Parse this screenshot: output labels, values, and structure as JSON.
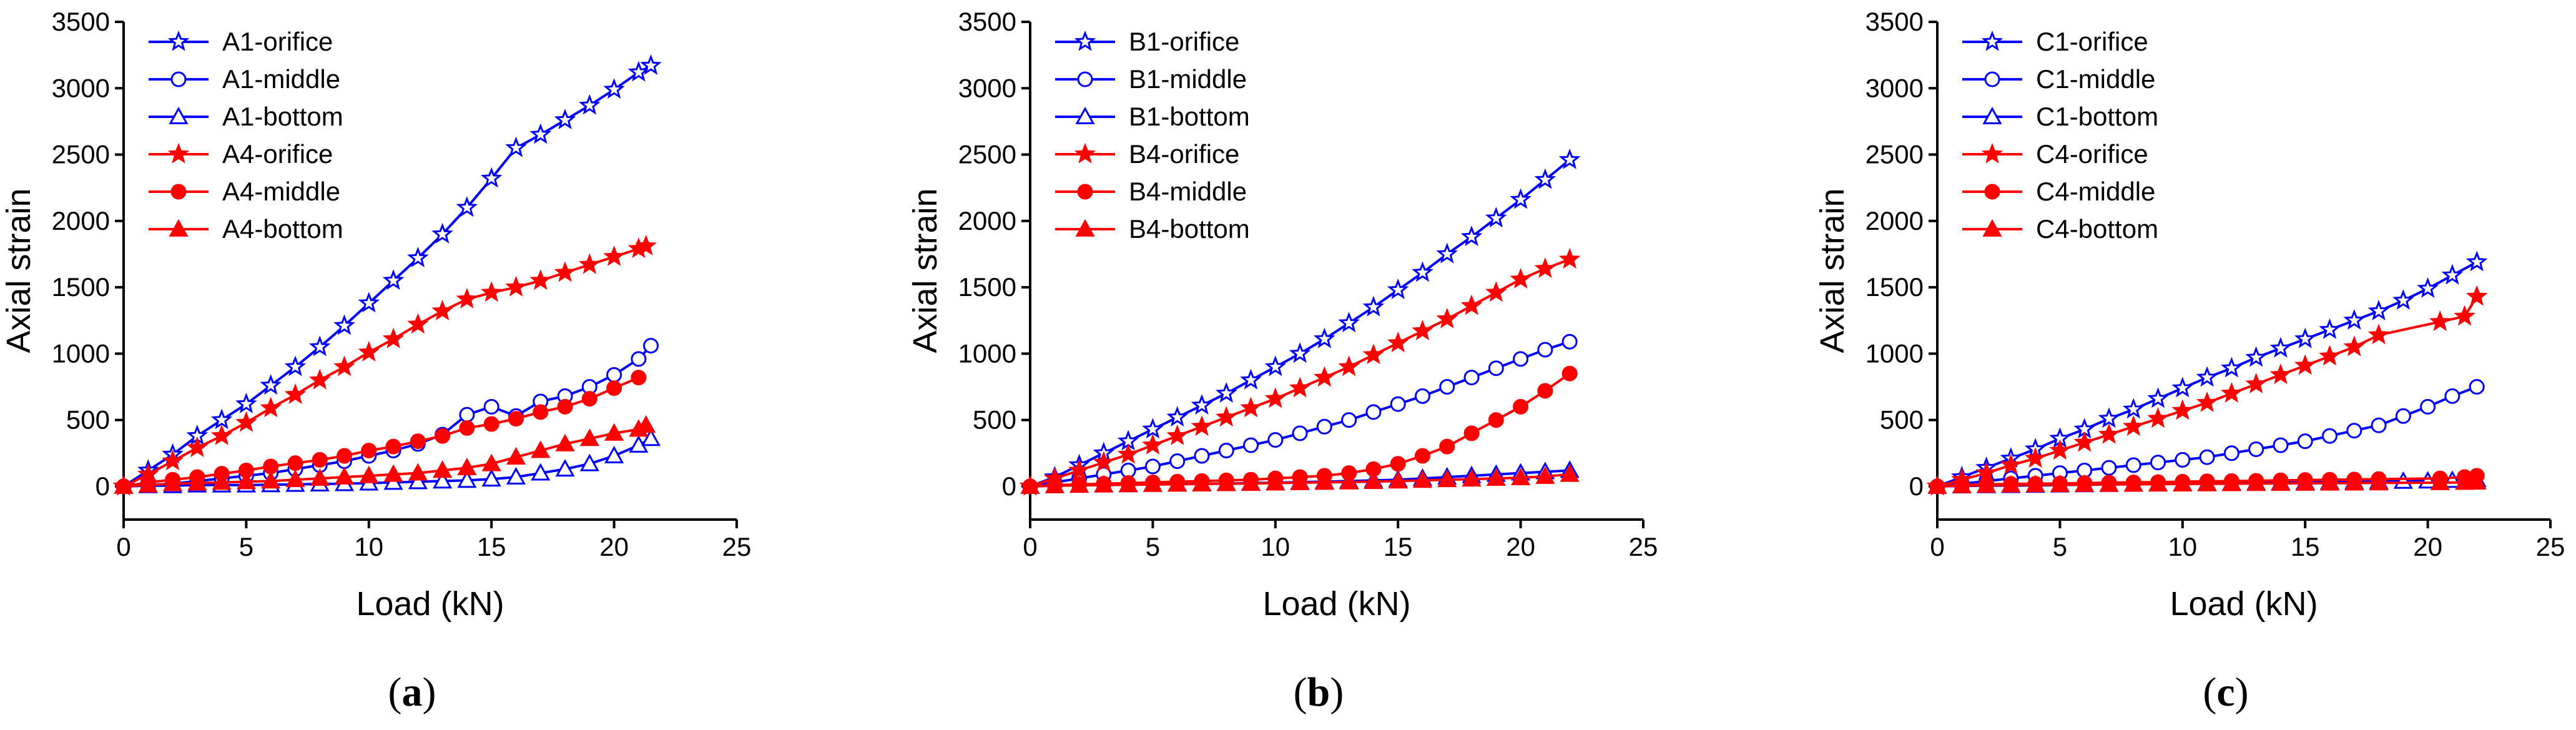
{
  "chart_data": [
    {
      "type": "line",
      "panel_label": "a",
      "xlabel": "Load (kN)",
      "ylabel": "Axial strain",
      "xlim": [
        0,
        25
      ],
      "ylim": [
        -250,
        3500
      ],
      "xticks": [
        0,
        5,
        10,
        15,
        20,
        25
      ],
      "yticks": [
        0,
        500,
        1000,
        1500,
        2000,
        2500,
        3000,
        3500
      ],
      "legend_position": "top-left",
      "series": [
        {
          "name": "A1-orifice",
          "color": "#0000ff",
          "marker": "star-open",
          "x": [
            0,
            1,
            2,
            3,
            4,
            5,
            6,
            7,
            8,
            9,
            10,
            11,
            12,
            13,
            14,
            15,
            16,
            17,
            18,
            19,
            20,
            21,
            21.5
          ],
          "y": [
            0,
            120,
            240,
            380,
            500,
            620,
            760,
            900,
            1050,
            1210,
            1380,
            1550,
            1720,
            1900,
            2100,
            2320,
            2550,
            2650,
            2760,
            2870,
            2990,
            3120,
            3170
          ]
        },
        {
          "name": "A1-middle",
          "color": "#0000ff",
          "marker": "circle-open",
          "x": [
            0,
            1,
            2,
            3,
            4,
            5,
            6,
            7,
            8,
            9,
            10,
            11,
            12,
            13,
            14,
            15,
            16,
            17,
            18,
            19,
            20,
            21,
            21.5
          ],
          "y": [
            0,
            10,
            20,
            40,
            60,
            80,
            100,
            130,
            160,
            190,
            230,
            270,
            320,
            390,
            540,
            600,
            530,
            640,
            680,
            750,
            840,
            960,
            1060
          ]
        },
        {
          "name": "A1-bottom",
          "color": "#0000ff",
          "marker": "triangle-open",
          "x": [
            0,
            1,
            2,
            3,
            4,
            5,
            6,
            7,
            8,
            9,
            10,
            11,
            12,
            13,
            14,
            15,
            16,
            17,
            18,
            19,
            20,
            21,
            21.5
          ],
          "y": [
            0,
            5,
            5,
            10,
            10,
            10,
            12,
            15,
            18,
            20,
            25,
            30,
            35,
            40,
            45,
            55,
            70,
            100,
            130,
            170,
            230,
            310,
            360
          ]
        },
        {
          "name": "A4-orifice",
          "color": "#ff0000",
          "marker": "star-filled",
          "x": [
            0,
            1,
            2,
            3,
            4,
            5,
            6,
            7,
            8,
            9,
            10,
            11,
            12,
            13,
            14,
            15,
            16,
            17,
            18,
            19,
            20,
            21,
            21.3
          ],
          "y": [
            0,
            90,
            190,
            290,
            380,
            480,
            590,
            690,
            800,
            900,
            1010,
            1110,
            1220,
            1320,
            1410,
            1460,
            1500,
            1550,
            1610,
            1670,
            1730,
            1790,
            1810
          ]
        },
        {
          "name": "A4-middle",
          "color": "#ff0000",
          "marker": "circle-filled",
          "x": [
            0,
            1,
            2,
            3,
            4,
            5,
            6,
            7,
            8,
            9,
            10,
            11,
            12,
            13,
            14,
            15,
            16,
            17,
            18,
            19,
            20,
            21
          ],
          "y": [
            0,
            30,
            50,
            70,
            95,
            120,
            150,
            175,
            200,
            230,
            270,
            300,
            340,
            380,
            440,
            470,
            510,
            560,
            600,
            660,
            740,
            820
          ]
        },
        {
          "name": "A4-bottom",
          "color": "#ff0000",
          "marker": "triangle-filled",
          "x": [
            0,
            1,
            2,
            3,
            4,
            5,
            6,
            7,
            8,
            9,
            10,
            11,
            12,
            13,
            14,
            15,
            16,
            17,
            18,
            19,
            20,
            21,
            21.3
          ],
          "y": [
            0,
            10,
            20,
            25,
            30,
            35,
            40,
            50,
            60,
            70,
            80,
            90,
            100,
            120,
            140,
            170,
            220,
            270,
            320,
            360,
            400,
            430,
            460
          ]
        }
      ]
    },
    {
      "type": "line",
      "panel_label": "b",
      "xlabel": "Load (kN)",
      "ylabel": "Axial strain",
      "xlim": [
        0,
        25
      ],
      "ylim": [
        -250,
        3500
      ],
      "xticks": [
        0,
        5,
        10,
        15,
        20,
        25
      ],
      "yticks": [
        0,
        500,
        1000,
        1500,
        2000,
        2500,
        3000,
        3500
      ],
      "legend_position": "top-left",
      "series": [
        {
          "name": "B1-orifice",
          "color": "#0000ff",
          "marker": "star-open",
          "x": [
            0,
            1,
            2,
            3,
            4,
            5,
            6,
            7,
            8,
            9,
            10,
            11,
            12,
            13,
            14,
            15,
            16,
            17,
            18,
            19,
            20,
            21,
            22
          ],
          "y": [
            0,
            70,
            160,
            250,
            340,
            430,
            520,
            610,
            700,
            800,
            900,
            1000,
            1110,
            1230,
            1350,
            1480,
            1610,
            1750,
            1880,
            2020,
            2160,
            2310,
            2460
          ]
        },
        {
          "name": "B1-middle",
          "color": "#0000ff",
          "marker": "circle-open",
          "x": [
            0,
            1,
            2,
            3,
            4,
            5,
            6,
            7,
            8,
            9,
            10,
            11,
            12,
            13,
            14,
            15,
            16,
            17,
            18,
            19,
            20,
            21,
            22
          ],
          "y": [
            0,
            30,
            60,
            90,
            120,
            150,
            190,
            230,
            270,
            310,
            350,
            400,
            450,
            500,
            560,
            620,
            680,
            750,
            820,
            890,
            960,
            1030,
            1090
          ]
        },
        {
          "name": "B1-bottom",
          "color": "#0000ff",
          "marker": "triangle-open",
          "x": [
            0,
            1,
            2,
            3,
            4,
            5,
            6,
            7,
            8,
            9,
            10,
            11,
            12,
            13,
            14,
            15,
            16,
            17,
            18,
            19,
            20,
            21,
            22
          ],
          "y": [
            0,
            5,
            8,
            10,
            12,
            15,
            18,
            20,
            22,
            25,
            28,
            32,
            36,
            40,
            45,
            50,
            60,
            70,
            80,
            90,
            100,
            110,
            120
          ]
        },
        {
          "name": "B4-orifice",
          "color": "#ff0000",
          "marker": "star-filled",
          "x": [
            0,
            1,
            2,
            3,
            4,
            5,
            6,
            7,
            8,
            9,
            10,
            11,
            12,
            13,
            14,
            15,
            16,
            17,
            18,
            19,
            20,
            21,
            22
          ],
          "y": [
            0,
            60,
            120,
            180,
            240,
            310,
            380,
            450,
            520,
            590,
            660,
            740,
            820,
            900,
            990,
            1080,
            1170,
            1260,
            1360,
            1460,
            1560,
            1640,
            1710
          ]
        },
        {
          "name": "B4-middle",
          "color": "#ff0000",
          "marker": "circle-filled",
          "x": [
            0,
            1,
            2,
            3,
            4,
            5,
            6,
            7,
            8,
            9,
            10,
            11,
            12,
            13,
            14,
            15,
            16,
            17,
            18,
            19,
            20,
            21,
            22
          ],
          "y": [
            0,
            10,
            15,
            20,
            25,
            30,
            35,
            40,
            45,
            50,
            60,
            70,
            80,
            100,
            130,
            170,
            230,
            300,
            400,
            500,
            600,
            720,
            850
          ]
        },
        {
          "name": "B4-bottom",
          "color": "#ff0000",
          "marker": "triangle-filled",
          "x": [
            0,
            1,
            2,
            3,
            4,
            5,
            6,
            7,
            8,
            9,
            10,
            11,
            12,
            13,
            14,
            15,
            16,
            17,
            18,
            19,
            20,
            21,
            22
          ],
          "y": [
            0,
            5,
            8,
            10,
            12,
            14,
            16,
            18,
            20,
            22,
            25,
            28,
            30,
            33,
            36,
            40,
            45,
            50,
            55,
            60,
            65,
            75,
            90
          ]
        }
      ]
    },
    {
      "type": "line",
      "panel_label": "c",
      "xlabel": "Load (kN)",
      "ylabel": "Axial strain",
      "xlim": [
        0,
        25
      ],
      "ylim": [
        -250,
        3500
      ],
      "xticks": [
        0,
        5,
        10,
        15,
        20,
        25
      ],
      "yticks": [
        0,
        500,
        1000,
        1500,
        2000,
        2500,
        3000,
        3500
      ],
      "legend_position": "top-left",
      "series": [
        {
          "name": "C1-orifice",
          "color": "#0000ff",
          "marker": "star-open",
          "x": [
            0,
            1,
            2,
            3,
            4,
            5,
            6,
            7,
            8,
            9,
            10,
            11,
            12,
            13,
            14,
            15,
            16,
            17,
            18,
            19,
            20,
            21,
            22
          ],
          "y": [
            0,
            70,
            140,
            210,
            280,
            360,
            430,
            510,
            580,
            660,
            740,
            820,
            890,
            970,
            1040,
            1110,
            1180,
            1250,
            1320,
            1400,
            1490,
            1590,
            1690
          ]
        },
        {
          "name": "C1-middle",
          "color": "#0000ff",
          "marker": "circle-open",
          "x": [
            0,
            1,
            2,
            3,
            4,
            5,
            6,
            7,
            8,
            9,
            10,
            11,
            12,
            13,
            14,
            15,
            16,
            17,
            18,
            19,
            20,
            21,
            22
          ],
          "y": [
            0,
            20,
            40,
            60,
            80,
            100,
            120,
            140,
            160,
            180,
            200,
            220,
            250,
            280,
            310,
            340,
            380,
            420,
            460,
            530,
            600,
            680,
            750
          ]
        },
        {
          "name": "C1-bottom",
          "color": "#0000ff",
          "marker": "triangle-open",
          "x": [
            0,
            1,
            2,
            3,
            4,
            5,
            6,
            7,
            8,
            9,
            10,
            11,
            12,
            13,
            14,
            15,
            16,
            17,
            18,
            19,
            20,
            21,
            22
          ],
          "y": [
            0,
            3,
            5,
            6,
            8,
            10,
            12,
            14,
            16,
            18,
            20,
            22,
            24,
            26,
            28,
            30,
            32,
            34,
            36,
            38,
            40,
            45,
            50
          ]
        },
        {
          "name": "C4-orifice",
          "color": "#ff0000",
          "marker": "star-filled",
          "x": [
            0,
            1,
            2,
            3,
            4,
            5,
            6,
            7,
            8,
            9,
            10,
            11,
            12,
            13,
            14,
            15,
            16,
            17,
            18,
            20.5,
            21.5,
            22
          ],
          "y": [
            0,
            50,
            100,
            160,
            210,
            270,
            330,
            390,
            450,
            510,
            570,
            630,
            700,
            770,
            840,
            910,
            980,
            1050,
            1140,
            1240,
            1280,
            1430
          ]
        },
        {
          "name": "C4-middle",
          "color": "#ff0000",
          "marker": "circle-filled",
          "x": [
            0,
            1,
            2,
            3,
            4,
            5,
            6,
            7,
            8,
            9,
            10,
            11,
            12,
            13,
            14,
            15,
            16,
            17,
            18,
            20.5,
            21.5,
            22
          ],
          "y": [
            0,
            10,
            15,
            18,
            20,
            22,
            25,
            28,
            30,
            32,
            35,
            38,
            40,
            42,
            45,
            48,
            50,
            52,
            55,
            60,
            70,
            80
          ]
        },
        {
          "name": "C4-bottom",
          "color": "#ff0000",
          "marker": "triangle-filled",
          "x": [
            0,
            1,
            2,
            3,
            4,
            5,
            6,
            7,
            8,
            9,
            10,
            11,
            12,
            13,
            14,
            15,
            16,
            17,
            18,
            20.5,
            21.5,
            22
          ],
          "y": [
            0,
            5,
            8,
            10,
            12,
            13,
            14,
            15,
            16,
            17,
            18,
            19,
            20,
            21,
            22,
            23,
            24,
            25,
            26,
            28,
            30,
            32
          ]
        }
      ]
    }
  ]
}
